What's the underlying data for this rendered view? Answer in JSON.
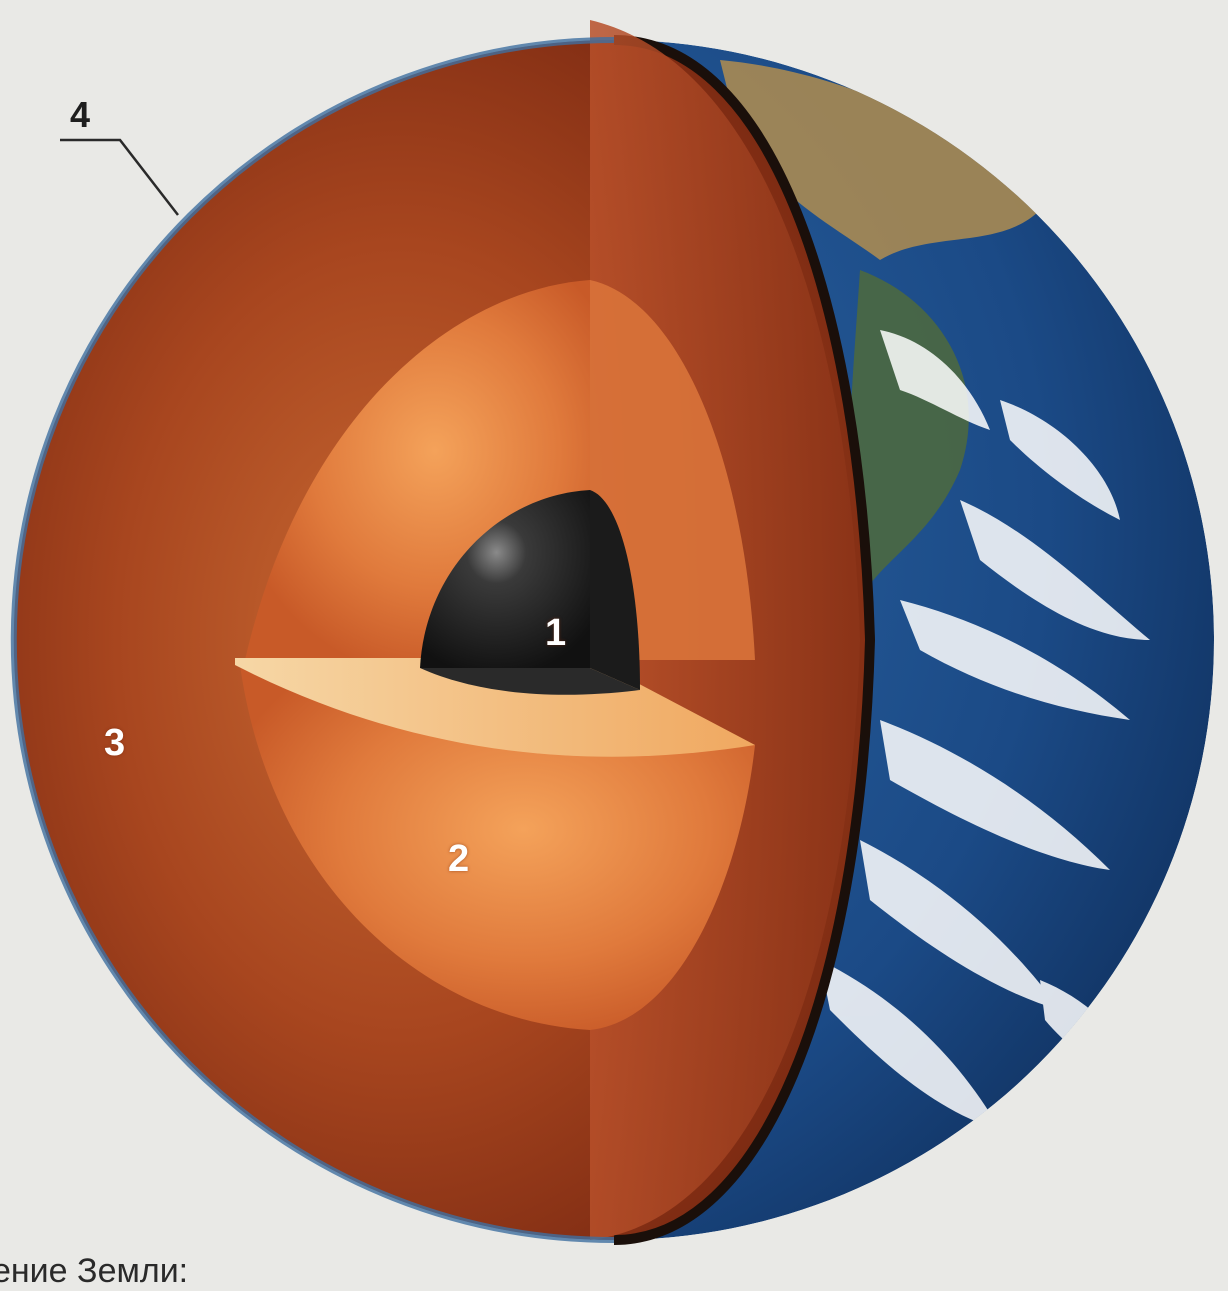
{
  "labels": {
    "core_inner": "1",
    "core_outer": "2",
    "mantle": "3",
    "crust": "4"
  },
  "caption": "ение Земли:",
  "colors": {
    "background": "#e9e9e6",
    "mantle": "#9a3d1c",
    "outer_core": "#d8733a",
    "inner_core": "#1c1c1c",
    "ocean": "#1d4f8c",
    "cloud": "#ffffff",
    "label_text": "#ffffff",
    "callout_text": "#1e1e1e"
  }
}
